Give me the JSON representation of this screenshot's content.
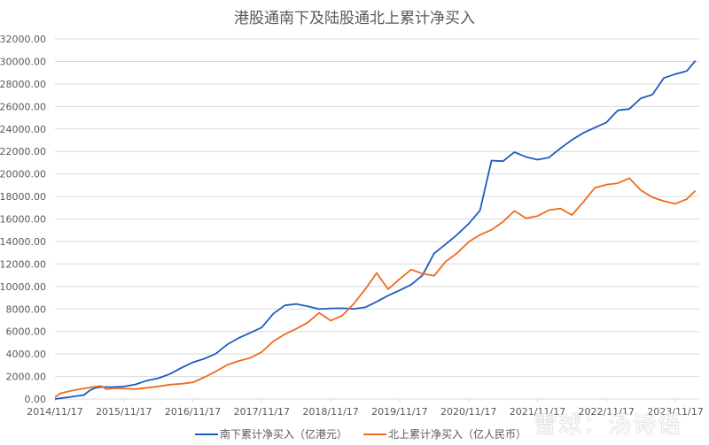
{
  "chart_data": {
    "type": "line",
    "title": "港股通南下及陆股通北上累计净买入",
    "xlabel": "",
    "ylabel": "",
    "ylim": [
      0,
      32000
    ],
    "yticks": [
      "0.00",
      "2000.00",
      "4000.00",
      "6000.00",
      "8000.00",
      "10000.00",
      "12000.00",
      "14000.00",
      "16000.00",
      "18000.00",
      "20000.00",
      "22000.00",
      "24000.00",
      "26000.00",
      "28000.00",
      "30000.00",
      "32000.00"
    ],
    "xticks": [
      "2014/11/17",
      "2015/11/17",
      "2016/11/17",
      "2017/11/17",
      "2018/11/17",
      "2019/11/17",
      "2020/11/17",
      "2021/11/17",
      "2022/11/17",
      "2023/11/17"
    ],
    "x_unit": "months since 2014/11/17",
    "grid": true,
    "legend_position": "bottom",
    "series": [
      {
        "name": "南下累计净买入（亿港元）",
        "color": "#1f5bbf",
        "x": [
          0,
          1,
          3,
          5,
          6,
          7,
          8,
          10,
          12,
          14,
          16,
          18,
          20,
          22,
          24,
          26,
          28,
          30,
          32,
          34,
          36,
          38,
          40,
          42,
          44,
          46,
          48,
          50,
          52,
          54,
          56,
          58,
          60,
          62,
          64,
          66,
          68,
          70,
          72,
          74,
          76,
          78,
          80,
          82,
          84,
          86,
          88,
          90,
          92,
          94,
          96,
          98,
          100,
          102,
          104,
          106,
          108,
          110,
          111.5
        ],
        "values": [
          0,
          100,
          250,
          350,
          700,
          950,
          1050,
          1100,
          1150,
          1300,
          1600,
          1800,
          2200,
          2800,
          3300,
          3600,
          4000,
          4800,
          5400,
          5900,
          6400,
          7600,
          8300,
          8400,
          8200,
          8000,
          8100,
          8100,
          8000,
          8100,
          8600,
          9200,
          9700,
          10200,
          11000,
          12900,
          13700,
          14600,
          15600,
          16800,
          21200,
          21100,
          21900,
          21500,
          21300,
          21500,
          22300,
          23000,
          23600,
          24100,
          24600,
          25700,
          25800,
          26700,
          27000,
          28500,
          28900,
          29200,
          30100
        ]
      },
      {
        "name": "北上累计净买入（亿人民币）",
        "color": "#ed6b1e",
        "x": [
          0,
          1,
          3,
          5,
          7,
          8,
          9,
          10,
          12,
          14,
          16,
          18,
          20,
          22,
          24,
          26,
          28,
          30,
          32,
          34,
          36,
          38,
          40,
          42,
          44,
          46,
          48,
          50,
          52,
          54,
          56,
          58,
          60,
          62,
          64,
          66,
          68,
          70,
          72,
          74,
          76,
          78,
          80,
          82,
          84,
          86,
          88,
          90,
          92,
          94,
          96,
          98,
          100,
          102,
          104,
          106,
          108,
          110,
          111.5
        ],
        "values": [
          200,
          550,
          750,
          900,
          1050,
          1150,
          900,
          1000,
          950,
          850,
          950,
          1100,
          1300,
          1400,
          1500,
          1900,
          2400,
          3000,
          3400,
          3700,
          4200,
          5100,
          5700,
          6200,
          6800,
          7700,
          7000,
          7400,
          8400,
          9700,
          11200,
          9800,
          10700,
          11500,
          11100,
          10900,
          12200,
          13000,
          14000,
          14600,
          15000,
          15700,
          16700,
          16100,
          16300,
          16800,
          16900,
          16300,
          17500,
          18800,
          19100,
          19200,
          19600,
          18500,
          17900,
          17600,
          17400,
          17800,
          18500
        ]
      }
    ]
  },
  "legend": {
    "items": [
      {
        "label": "南下累计净买入（亿港元）",
        "color": "#1f5bbf"
      },
      {
        "label": "北上累计净买入（亿人民币）",
        "color": "#ed6b1e"
      }
    ]
  },
  "watermark": "雪球：汤诗语"
}
